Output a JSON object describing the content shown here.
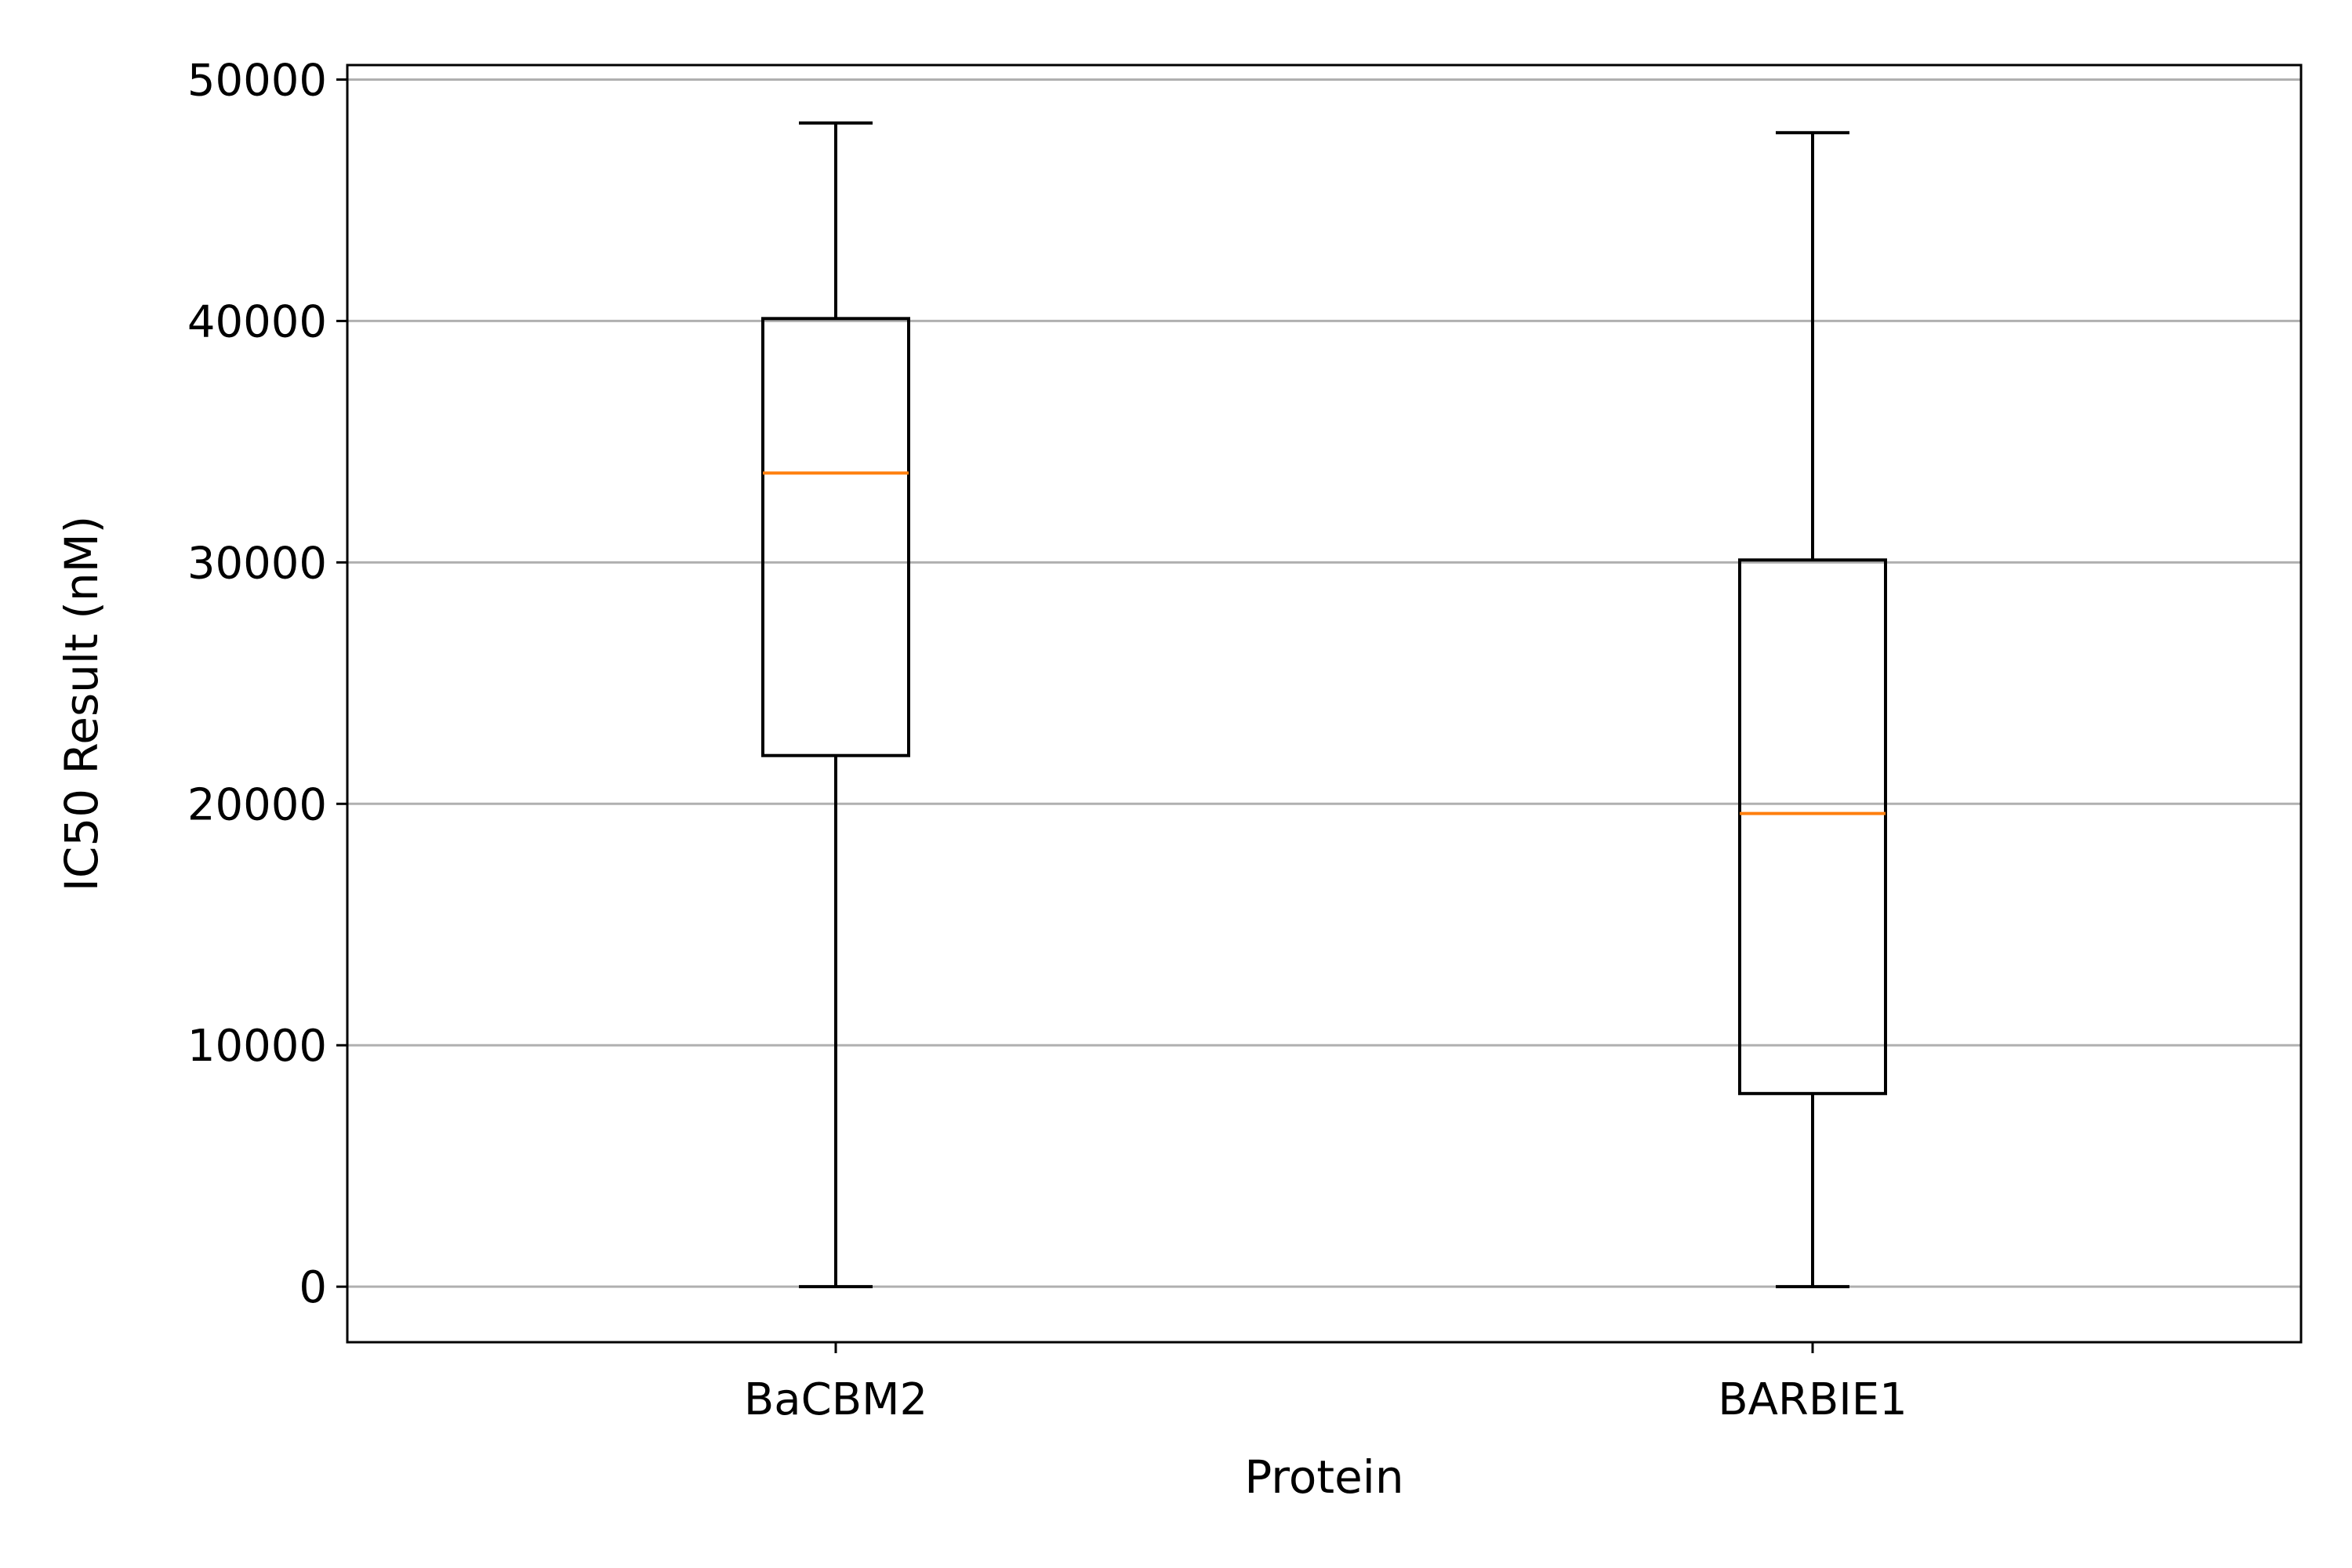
{
  "chart_data": {
    "type": "box",
    "title": "",
    "xlabel": "Protein",
    "ylabel": "IC50 Result (nM)",
    "ylim": [
      -2300,
      50600
    ],
    "yticks": [
      0,
      10000,
      20000,
      30000,
      40000,
      50000
    ],
    "grid": "y",
    "categories": [
      "BaCBM2",
      "BARBIE1"
    ],
    "boxes": [
      {
        "category": "BaCBM2",
        "whisker_low": 0,
        "q1": 22000,
        "median": 33700,
        "q3": 40100,
        "whisker_high": 48200
      },
      {
        "category": "BARBIE1",
        "whisker_low": 0,
        "q1": 8000,
        "median": 19600,
        "q3": 30100,
        "whisker_high": 47800
      }
    ],
    "colors": {
      "box": "#000000",
      "median": "#ff7f0e",
      "grid": "#b0b0b0"
    }
  }
}
